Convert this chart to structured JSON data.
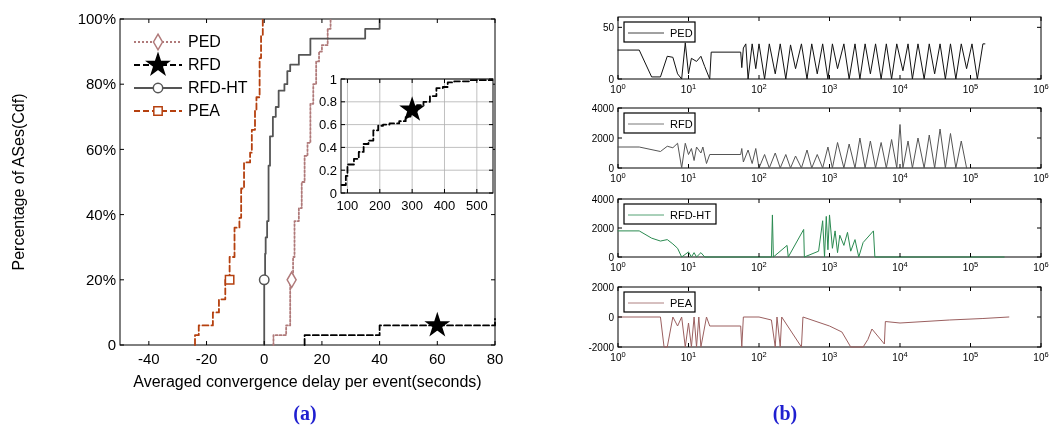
{
  "chart_data": [
    {
      "type": "step",
      "xlabel": "Averaged convergence delay per event(seconds)",
      "ylabel": "Percentage of ASes(Cdf)",
      "xlim": [
        -50,
        80
      ],
      "xticks": [
        -40,
        -20,
        0,
        20,
        40,
        60,
        80
      ],
      "ylim": [
        0,
        100
      ],
      "yticks": [
        0,
        {
          "value": 20,
          "label": "20%"
        },
        {
          "value": 40,
          "label": "40%"
        },
        {
          "value": 60,
          "label": "60%"
        },
        {
          "value": 80,
          "label": "80%"
        },
        {
          "value": 100,
          "label": "100%"
        }
      ],
      "legend": "top left",
      "annotations": [
        "(a)"
      ],
      "series": [
        {
          "name": "PED",
          "color": "#b07a7a",
          "line_style": "dotted",
          "x": [
            3.2,
            3.2,
            7.6,
            9,
            10,
            10.5,
            12,
            13,
            14,
            15,
            16,
            17,
            18,
            19,
            20,
            22,
            23
          ],
          "values": [
            0,
            3,
            6,
            20,
            27,
            38,
            42,
            50,
            58,
            62,
            74,
            80,
            87,
            90,
            92,
            97,
            100
          ]
        },
        {
          "name": "RFD",
          "color": "#000000",
          "line_style": "dashed",
          "x": [
            14,
            14,
            40,
            80
          ],
          "values": [
            0,
            3,
            6,
            8
          ]
        },
        {
          "name": "RFD-HT",
          "color": "#555555",
          "line_style": "solid",
          "x": [
            0,
            0,
            0.3,
            0.5,
            1,
            1.5,
            2,
            3,
            4,
            5,
            7,
            8,
            9,
            12,
            16,
            35,
            40
          ],
          "values": [
            0,
            20,
            28,
            33,
            38,
            55,
            64,
            70,
            73,
            78,
            80,
            84,
            86,
            89,
            94,
            97,
            100
          ]
        },
        {
          "name": "PEA",
          "color": "#b5400f",
          "line_style": "dashed",
          "x": [
            -24,
            -24,
            -22.7,
            -17.8,
            -15.7,
            -13.5,
            -12,
            -10.3,
            -8.6,
            -8,
            -7,
            -4.9,
            -4.3,
            -3.2,
            -2.7,
            -1.6,
            -1.1,
            -0.5
          ],
          "values": [
            0,
            3,
            6,
            10,
            14,
            20,
            27,
            36,
            39,
            48,
            56,
            59,
            66,
            72,
            76,
            88,
            95,
            100
          ]
        },
        {
          "type": "scatter",
          "color": "#b07a7a",
          "marker": "diamond",
          "x": [
            9.5
          ],
          "values": [
            20
          ]
        },
        {
          "type": "scatter",
          "color": "#000000",
          "marker": "star",
          "x": [
            60
          ],
          "values": [
            6
          ]
        },
        {
          "type": "scatter",
          "color": "#555555",
          "marker": "circle",
          "x": [
            0
          ],
          "values": [
            20
          ]
        },
        {
          "type": "scatter",
          "color": "#b5400f",
          "marker": "square",
          "x": [
            -12
          ],
          "values": [
            20
          ]
        }
      ]
    },
    {
      "type": "step",
      "xlim": [
        80,
        550
      ],
      "xticks": [
        100,
        200,
        300,
        400,
        500
      ],
      "ylim": [
        0,
        1
      ],
      "yticks": [
        0,
        0.2,
        0.4,
        0.6,
        0.8,
        1
      ],
      "grid": true,
      "series": [
        {
          "color": "#000000",
          "line_style": "dashed",
          "x": [
            82,
            95,
            100,
            110,
            120,
            135,
            150,
            165,
            180,
            195,
            210,
            230,
            260,
            280,
            295,
            315,
            335,
            355,
            375,
            395,
            410,
            430,
            480,
            548
          ],
          "values": [
            0.07,
            0.15,
            0.25,
            0.25,
            0.3,
            0.36,
            0.43,
            0.46,
            0.55,
            0.59,
            0.6,
            0.61,
            0.63,
            0.67,
            0.72,
            0.77,
            0.8,
            0.85,
            0.92,
            0.93,
            0.97,
            0.98,
            0.99,
            0.99
          ]
        },
        {
          "type": "scatter",
          "color": "#000000",
          "marker": "star",
          "x": [
            300
          ],
          "values": [
            0.73
          ]
        }
      ]
    },
    {
      "type": "line",
      "log": "x",
      "xlim": [
        1,
        1000000
      ],
      "xticks": [
        {
          "value": 1,
          "label": "10$^{0}$"
        },
        {
          "value": 10,
          "label": "10$^{1}$"
        },
        {
          "value": 100,
          "label": "10$^{2}$"
        },
        {
          "value": 1000,
          "label": "10$^{3}$"
        },
        {
          "value": 10000,
          "label": "10$^{4}$"
        },
        {
          "value": 100000,
          "label": "10$^{5}$"
        },
        {
          "value": 1000000,
          "label": "10$^{6}$"
        }
      ],
      "ylim": [
        0,
        60
      ],
      "yticks": [
        0,
        50
      ],
      "legend": "top left",
      "series": [
        {
          "name": "PED",
          "color": "#111111",
          "x": [
            1,
            2,
            3,
            4,
            5,
            6,
            7,
            8,
            9,
            10,
            11,
            13,
            15,
            17,
            20,
            21,
            55,
            57,
            60,
            65,
            70,
            80,
            90,
            100,
            120,
            140,
            170,
            200,
            240,
            280,
            330,
            400,
            480,
            560,
            670,
            800,
            950,
            1100,
            1300,
            1600,
            1900,
            2300,
            2700,
            3200,
            3800,
            4500,
            5400,
            6400,
            7600,
            9000,
            11000,
            13000,
            15000,
            18000,
            22000,
            26000,
            31000,
            37000,
            44000,
            52000,
            62000,
            74000,
            88000,
            105000,
            125000,
            150000,
            160000
          ],
          "values": [
            28,
            28,
            2,
            2,
            22,
            21,
            5,
            0,
            35,
            5,
            20,
            17,
            22,
            12,
            0,
            26,
            26,
            11,
            30,
            34,
            0,
            34,
            10,
            34,
            0,
            34,
            5,
            34,
            0,
            33,
            10,
            34,
            0,
            34,
            5,
            34,
            0,
            34,
            10,
            34,
            0,
            34,
            0,
            34,
            5,
            34,
            0,
            34,
            0,
            34,
            8,
            34,
            0,
            34,
            0,
            34,
            5,
            34,
            0,
            34,
            0,
            34,
            10,
            34,
            0,
            34,
            34
          ]
        }
      ]
    },
    {
      "type": "line",
      "log": "x",
      "xlim": [
        1,
        1000000
      ],
      "xticks": [
        {
          "value": 1,
          "label": "10$^{0}$"
        },
        {
          "value": 10,
          "label": "10$^{1}$"
        },
        {
          "value": 100,
          "label": "10$^{2}$"
        },
        {
          "value": 1000,
          "label": "10$^{3}$"
        },
        {
          "value": 10000,
          "label": "10$^{4}$"
        },
        {
          "value": 100000,
          "label": "10$^{5}$"
        },
        {
          "value": 1000000,
          "label": "10$^{6}$"
        }
      ],
      "ylim": [
        0,
        4000
      ],
      "yticks": [
        0,
        2000,
        4000
      ],
      "legend": "top left",
      "series": [
        {
          "name": "RFD",
          "color": "#555555",
          "x": [
            1,
            2,
            4,
            5,
            6,
            7,
            8,
            9,
            10,
            11,
            12,
            13,
            15,
            16,
            18,
            20,
            55,
            57,
            60,
            70,
            80,
            90,
            100,
            120,
            140,
            170,
            200,
            240,
            280,
            330,
            400,
            480,
            560,
            670,
            800,
            950,
            1100,
            1300,
            1600,
            1900,
            2300,
            2700,
            3200,
            3800,
            4500,
            5400,
            6400,
            7600,
            9000,
            10000,
            11000,
            13000,
            15000,
            18000,
            22000,
            26000,
            31000,
            37000,
            44000,
            52000,
            62000,
            74000,
            88000
          ],
          "values": [
            1400,
            1400,
            1100,
            1450,
            1350,
            1650,
            0,
            1650,
            900,
            1300,
            500,
            1400,
            1000,
            1400,
            300,
            900,
            900,
            1300,
            400,
            1200,
            300,
            1300,
            0,
            900,
            0,
            1000,
            0,
            900,
            0,
            800,
            0,
            1200,
            0,
            900,
            0,
            1400,
            0,
            1700,
            0,
            1600,
            0,
            2000,
            0,
            1800,
            0,
            1700,
            0,
            1900,
            0,
            2900,
            0,
            1800,
            0,
            2000,
            0,
            2200,
            0,
            2600,
            0,
            2300,
            0,
            1800,
            0
          ]
        }
      ]
    },
    {
      "type": "line",
      "log": "x",
      "xlim": [
        1,
        1000000
      ],
      "xticks": [
        {
          "value": 1,
          "label": "10$^{0}$"
        },
        {
          "value": 10,
          "label": "10$^{1}$"
        },
        {
          "value": 100,
          "label": "10$^{2}$"
        },
        {
          "value": 1000,
          "label": "10$^{3}$"
        },
        {
          "value": 10000,
          "label": "10$^{4}$"
        },
        {
          "value": 100000,
          "label": "10$^{5}$"
        },
        {
          "value": 1000000,
          "label": "10$^{6}$"
        }
      ],
      "ylim": [
        0,
        4000
      ],
      "yticks": [
        0,
        2000,
        4000
      ],
      "legend": "top left",
      "series": [
        {
          "name": "RFD-HT",
          "color": "#2a8a50",
          "x": [
            1,
            2,
            3,
            4,
            5,
            6,
            7,
            8,
            10,
            11,
            12,
            13,
            15,
            17,
            20,
            150,
            155,
            160,
            250,
            260,
            430,
            440,
            700,
            800,
            850,
            900,
            950,
            1000,
            1100,
            1200,
            1300,
            1400,
            1600,
            1800,
            2000,
            2300,
            2600,
            3000,
            4200,
            4400,
            300000
          ],
          "values": [
            1800,
            1800,
            1300,
            1100,
            1200,
            900,
            600,
            0,
            350,
            0,
            300,
            0,
            300,
            0,
            0,
            0,
            2900,
            0,
            800,
            0,
            1900,
            0,
            400,
            2500,
            0,
            2800,
            500,
            2900,
            600,
            1800,
            300,
            1500,
            800,
            1700,
            400,
            1200,
            0,
            1000,
            1800,
            0,
            0
          ]
        }
      ]
    },
    {
      "type": "line",
      "log": "x",
      "xlim": [
        1,
        1000000
      ],
      "xticks": [
        {
          "value": 1,
          "label": "10$^{0}$"
        },
        {
          "value": 10,
          "label": "10$^{1}$"
        },
        {
          "value": 100,
          "label": "10$^{2}$"
        },
        {
          "value": 1000,
          "label": "10$^{3}$"
        },
        {
          "value": 10000,
          "label": "10$^{4}$"
        },
        {
          "value": 100000,
          "label": "10$^{5}$"
        },
        {
          "value": 1000000,
          "label": "10$^{6}$"
        }
      ],
      "ylim": [
        -2000,
        2000
      ],
      "yticks": [
        -2000,
        0,
        2000
      ],
      "legend": "top left",
      "annotations": [
        "(b)"
      ],
      "series": [
        {
          "name": "PEA",
          "color": "#9b5f5f",
          "x": [
            1,
            4,
            4.5,
            5,
            6,
            7,
            8,
            9,
            10,
            11,
            12,
            13,
            14,
            15,
            18,
            20,
            55,
            57,
            60,
            100,
            150,
            170,
            180,
            200,
            210,
            400,
            420,
            1000,
            1500,
            2000,
            2500,
            3000,
            3500,
            4000,
            6000,
            6200,
            10000,
            50000,
            150000,
            350000
          ],
          "values": [
            0,
            0,
            -2000,
            -2000,
            0,
            -600,
            0,
            -2000,
            -400,
            -2000,
            0,
            -2000,
            0,
            -2000,
            0,
            -600,
            -600,
            -2000,
            0,
            0,
            -200,
            -2000,
            0,
            -2000,
            0,
            -2000,
            0,
            -600,
            -1000,
            -2000,
            -2000,
            -2000,
            -1500,
            -800,
            -1800,
            -300,
            -400,
            -200,
            -100,
            0
          ]
        }
      ]
    }
  ]
}
